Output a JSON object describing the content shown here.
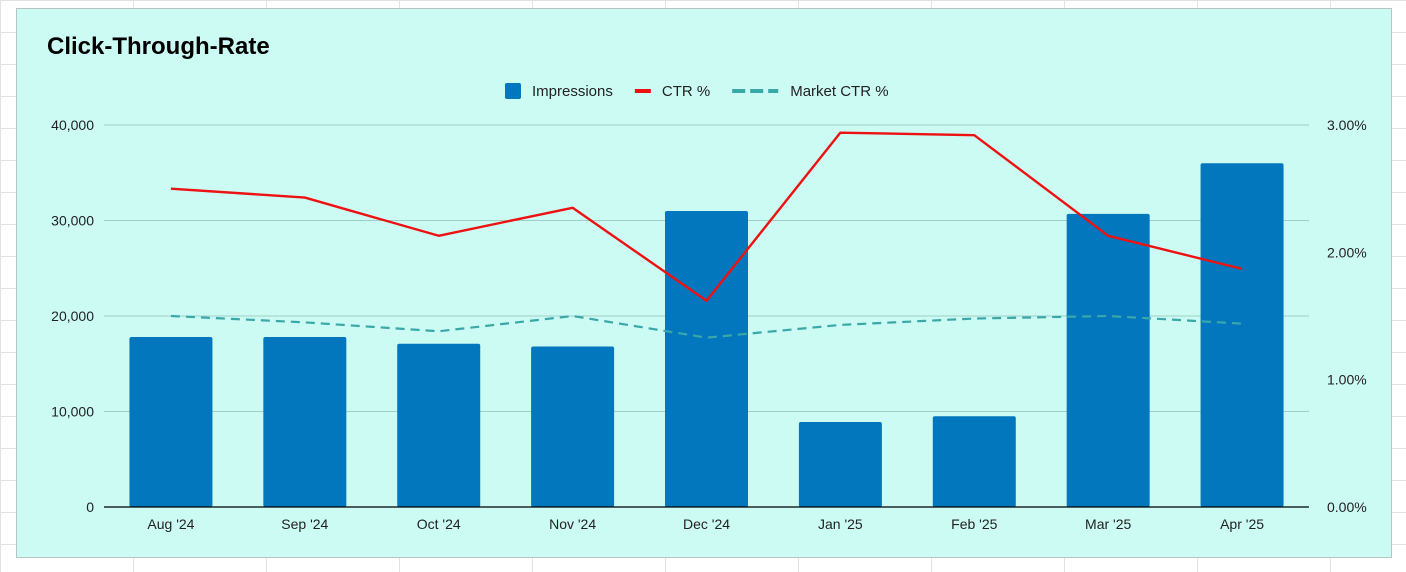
{
  "chart_data": {
    "type": "bar",
    "title": "Click-Through-Rate",
    "categories": [
      "Aug '24",
      "Sep '24",
      "Oct '24",
      "Nov '24",
      "Dec '24",
      "Jan '25",
      "Feb '25",
      "Mar '25",
      "Apr '25"
    ],
    "series": [
      {
        "name": "Impressions",
        "type": "bar",
        "axis": "left",
        "color": "#0277bd",
        "values": [
          17800,
          17800,
          17100,
          16800,
          31000,
          8900,
          9500,
          30700,
          36000
        ]
      },
      {
        "name": "CTR %",
        "type": "line",
        "axis": "right",
        "color": "#ee1111",
        "style": "solid",
        "values": [
          2.5,
          2.43,
          2.13,
          2.35,
          1.62,
          2.94,
          2.92,
          2.13,
          1.87
        ]
      },
      {
        "name": "Market CTR %",
        "type": "line",
        "axis": "right",
        "color": "#3aa7a8",
        "style": "dashed",
        "values": [
          1.5,
          1.45,
          1.38,
          1.5,
          1.33,
          1.43,
          1.48,
          1.5,
          1.44
        ]
      }
    ],
    "y_left": {
      "ylim": [
        0,
        40000
      ],
      "ticks": [
        0,
        10000,
        20000,
        30000,
        40000
      ],
      "tick_labels": [
        "0",
        "10,000",
        "20,000",
        "30,000",
        "40,000"
      ]
    },
    "y_right": {
      "ylim": [
        0,
        3
      ],
      "ticks": [
        0,
        1,
        2,
        3
      ],
      "tick_labels": [
        "0.00%",
        "1.00%",
        "2.00%",
        "3.00%"
      ]
    },
    "xlabel": "",
    "ylabel": "",
    "grid": true,
    "legend_position": "top-center"
  },
  "colors": {
    "background": "#ccfbf4",
    "gridline": "#9fcfc8",
    "axis": "#000000"
  }
}
